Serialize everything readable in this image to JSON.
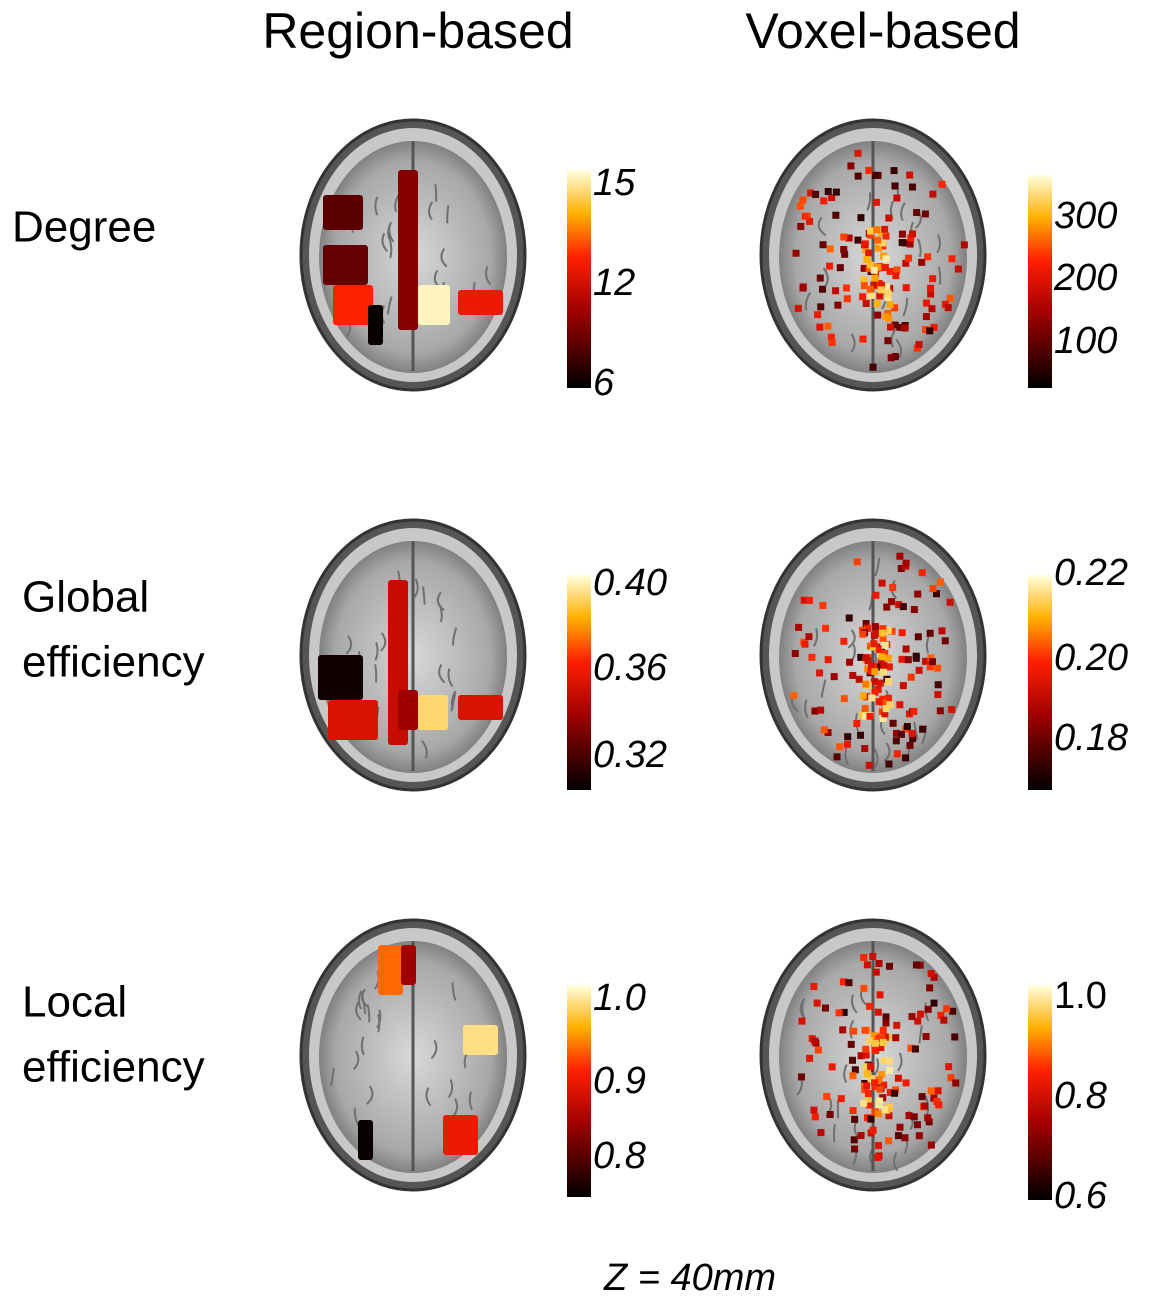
{
  "column_headers": [
    "Region-based",
    "Voxel-based"
  ],
  "rows": [
    {
      "label": [
        "Degree"
      ],
      "region_colorbar": [
        "15",
        "12",
        "6"
      ],
      "voxel_colorbar": [
        "300",
        "200",
        "100"
      ]
    },
    {
      "label": [
        "Global",
        "efficiency"
      ],
      "region_colorbar": [
        "0.40",
        "0.36",
        "0.32"
      ],
      "voxel_colorbar": [
        "0.22",
        "0.20",
        "0.18"
      ]
    },
    {
      "label": [
        "Local",
        "efficiency"
      ],
      "region_colorbar": [
        "1.0",
        "0.9",
        "0.8"
      ],
      "voxel_colorbar": [
        "1.0",
        "0.8",
        "0.6"
      ]
    }
  ],
  "footer": "Z = 40mm"
}
